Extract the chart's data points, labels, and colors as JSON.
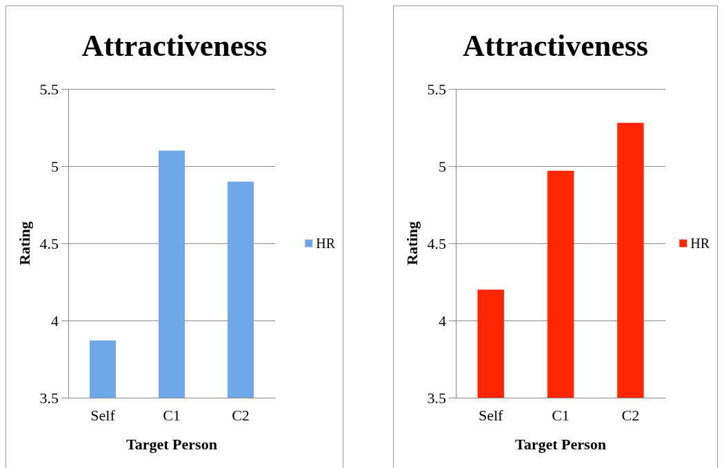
{
  "chart_data": [
    {
      "type": "bar",
      "title": "Attractiveness",
      "xlabel": "Target Person",
      "ylabel": "Rating",
      "categories": [
        "Self",
        "C1",
        "C2"
      ],
      "series": [
        {
          "name": "HR",
          "color": "#6fa8e8",
          "values": [
            3.87,
            5.1,
            4.9
          ]
        }
      ],
      "ylim": [
        3.5,
        5.5
      ],
      "yticks": [
        3.5,
        4,
        4.5,
        5,
        5.5
      ],
      "grid": "y",
      "legend": "right"
    },
    {
      "type": "bar",
      "title": "Attractiveness",
      "xlabel": "Target Person",
      "ylabel": "Rating",
      "categories": [
        "Self",
        "C1",
        "C2"
      ],
      "series": [
        {
          "name": "HR",
          "color": "#ff2600",
          "values": [
            4.2,
            4.97,
            5.28
          ]
        }
      ],
      "ylim": [
        3.5,
        5.5
      ],
      "yticks": [
        3.5,
        4,
        4.5,
        5,
        5.5
      ],
      "grid": "y",
      "legend": "right"
    }
  ]
}
